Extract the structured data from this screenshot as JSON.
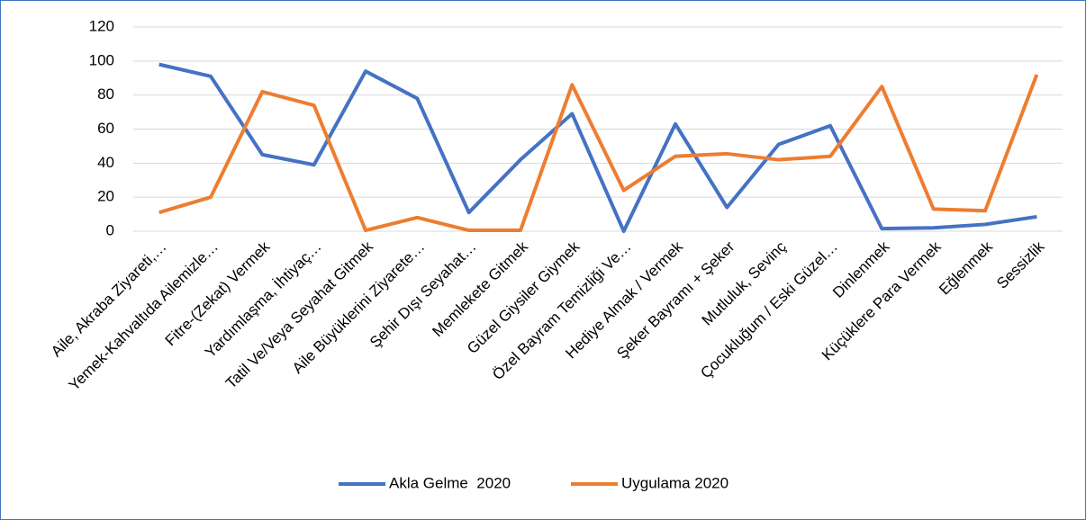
{
  "chart_data": {
    "type": "line",
    "categories": [
      "Aile, Akraba Ziyareti,…",
      "Yemek-Kahvaltıda Ailemizle…",
      "Fitre-(Zekat) Vermek",
      "Yardımlaşma, İhtiyaç…",
      "Tatil Ve/Veya Seyahat Gitmek",
      "Aile Büyüklerini Ziyarete…",
      "Şehir Dışı Seyahat…",
      "Memlekete Gitmek",
      "Güzel Giysiler Giymek",
      "Özel Bayram Temizliği Ve…",
      "Hediye Almak / Vermek",
      "Şeker Bayramı + Şeker",
      "Mutluluk, Sevinç",
      "Çocukluğum / Eski Güzel…",
      "Dinlenmek",
      "Küçüklere Para Vermek",
      "Eğlenmek",
      "Sessizlik"
    ],
    "series": [
      {
        "name": "Akla Gelme  2020",
        "color": "#4472c4",
        "values": [
          98,
          91,
          45,
          39,
          94,
          78,
          11,
          42,
          69,
          0,
          63,
          14,
          51,
          62,
          1.5,
          2,
          4,
          8.5
        ]
      },
      {
        "name": "Uygulama 2020",
        "color": "#ed7d31",
        "values": [
          11,
          20,
          82,
          74,
          0.5,
          8,
          0.5,
          0.5,
          86,
          24,
          44,
          45.5,
          42,
          44,
          85,
          13,
          12,
          92
        ]
      }
    ],
    "ylim": [
      0,
      120
    ],
    "yticks": [
      0,
      20,
      40,
      60,
      80,
      100,
      120
    ],
    "grid": true,
    "legend": "bottom"
  }
}
